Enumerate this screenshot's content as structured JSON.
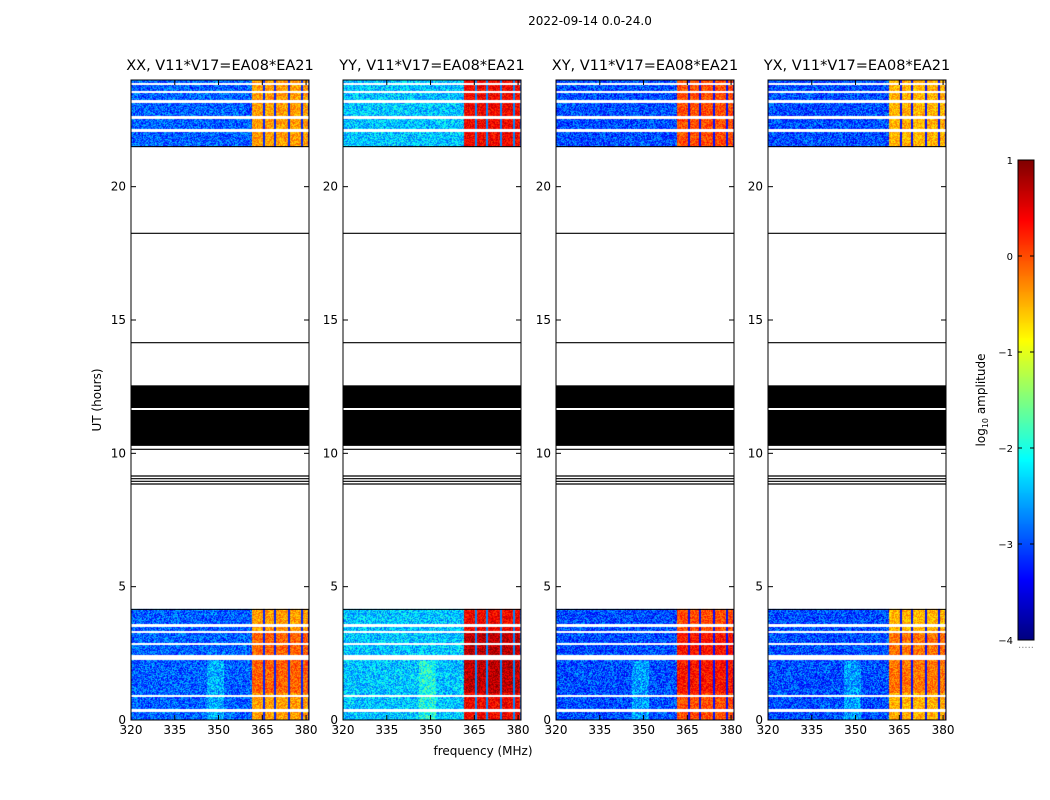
{
  "figure": {
    "suptitle": "2022-09-14 0.0-24.0",
    "ylabel": "UT (hours)",
    "xlabel": "frequency (MHz)",
    "colorbar_label": "log10 amplitude",
    "colorbar_label_base": "log",
    "colorbar_label_sub": "10",
    "colorbar_label_rest": " amplitude",
    "colorbar_footer": "....."
  },
  "chart_data": {
    "type": "heatmap",
    "panels": [
      {
        "title": "XX, V11*V17=EA08*EA21",
        "pol": "XX"
      },
      {
        "title": "YY, V11*V17=EA08*EA21",
        "pol": "YY"
      },
      {
        "title": "XY, V11*V17=EA08*EA21",
        "pol": "XY"
      },
      {
        "title": "YX, V11*V17=EA08*EA21",
        "pol": "YX"
      }
    ],
    "x_axis": {
      "label": "frequency (MHz)",
      "range": [
        320,
        381
      ],
      "ticks": [
        320,
        335,
        350,
        365,
        380
      ],
      "tick_labels": [
        "320",
        "335",
        "350",
        "365",
        "380"
      ]
    },
    "y_axis": {
      "label": "UT (hours)",
      "range": [
        0,
        24
      ],
      "ticks": [
        0,
        5,
        10,
        15,
        20
      ],
      "tick_labels": [
        "0",
        "5",
        "10",
        "15",
        "20"
      ]
    },
    "colorbar": {
      "label": "log10 amplitude",
      "range": [
        -4,
        1
      ],
      "ticks": [
        1,
        0,
        -1,
        -2,
        -3,
        -4
      ],
      "tick_labels": [
        "1",
        "0",
        "−1",
        "−2",
        "−3",
        "−4"
      ],
      "colormap": "jet"
    },
    "data_time_ranges_hours": [
      [
        0.0,
        4.15
      ],
      [
        21.5,
        24.0
      ]
    ],
    "empty_range_hours": [
      4.15,
      21.5
    ],
    "flagged_blocks_hours": [
      [
        10.3,
        12.55
      ]
    ],
    "horizontal_lines_hours": [
      18.25,
      14.15,
      11.75,
      11.7,
      10.6,
      10.45,
      10.3,
      10.15,
      9.15,
      9.05,
      8.95,
      8.85
    ],
    "data_gap_hours": [
      0.35,
      0.9,
      2.3,
      2.4,
      2.85,
      3.3,
      3.55,
      22.1,
      22.6,
      23.2,
      23.55,
      23.85
    ],
    "bright_band_mhz": [
      361.5,
      380.5
    ],
    "bright_channel_gaps_mhz": [
      365.5,
      369.5,
      374.0,
      378.5
    ],
    "panel_means_log10": {
      "XX": -2.9,
      "YY": -2.4,
      "XY": -3.0,
      "YX": -3.0
    },
    "panel_band_peaks_log10": {
      "XX": -0.4,
      "YY": 0.4,
      "XY": 0.0,
      "YX": -0.5
    }
  }
}
